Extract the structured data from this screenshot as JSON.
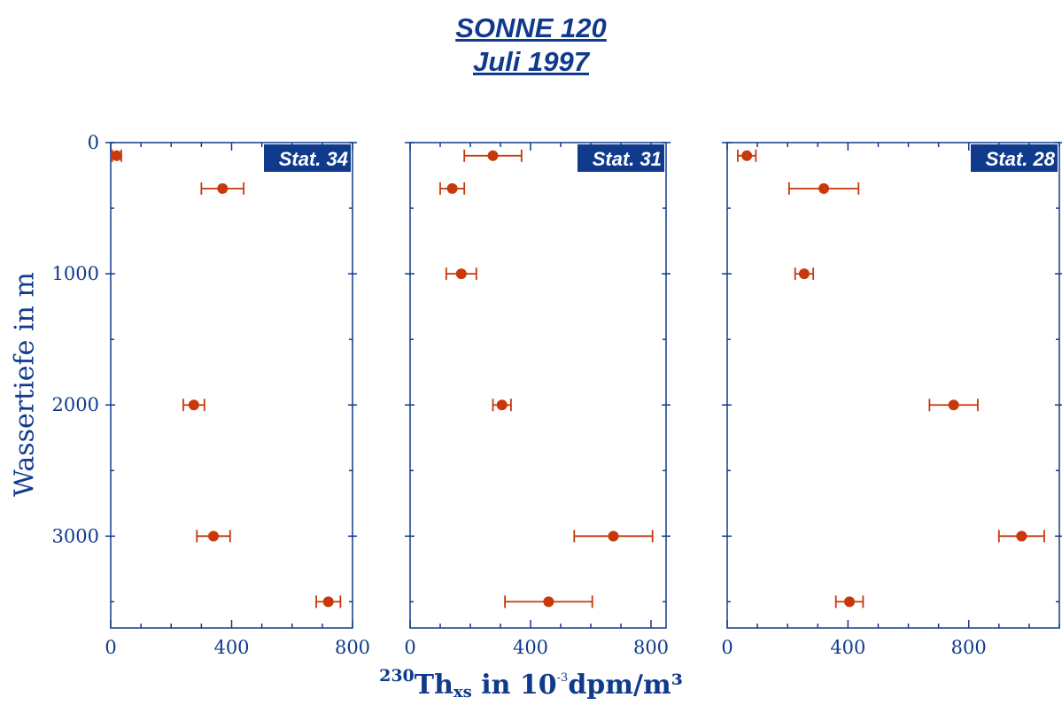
{
  "title": {
    "line1": "SONNE 120",
    "line2": "Juli 1997"
  },
  "xlabel": {
    "isotope": "230",
    "element": "Th",
    "subscript": "xs",
    "units_pre": " in 10",
    "exponent": "-3",
    "units_post": "dpm/m³"
  },
  "ylabel": "Wassertiefe in m",
  "colors": {
    "axis": "#103a8c",
    "data": "#c8380c",
    "badge_bg": "#103a8c",
    "badge_text": "#ffffff"
  },
  "chart_data": [
    {
      "type": "scatter",
      "station": "Stat. 34",
      "xlim": [
        0,
        800
      ],
      "ylim": [
        0,
        3700
      ],
      "y_reversed": true,
      "xticks": [
        "0",
        "400",
        "800"
      ],
      "yticks": [
        "0",
        "1000",
        "2000",
        "3000"
      ],
      "points": [
        {
          "x": 20,
          "y": 100,
          "xerr": 15
        },
        {
          "x": 370,
          "y": 350,
          "xerr": 70
        },
        {
          "x": 275,
          "y": 2000,
          "xerr": 35
        },
        {
          "x": 340,
          "y": 3000,
          "xerr": 55
        },
        {
          "x": 720,
          "y": 3500,
          "xerr": 40
        }
      ]
    },
    {
      "type": "scatter",
      "station": "Stat. 31",
      "xlim": [
        0,
        850
      ],
      "ylim": [
        0,
        3700
      ],
      "y_reversed": true,
      "xticks": [
        "0",
        "400",
        "800"
      ],
      "points": [
        {
          "x": 275,
          "y": 100,
          "xerr": 95
        },
        {
          "x": 140,
          "y": 350,
          "xerr": 40
        },
        {
          "x": 170,
          "y": 1000,
          "xerr": 50
        },
        {
          "x": 305,
          "y": 2000,
          "xerr": 30
        },
        {
          "x": 675,
          "y": 3000,
          "xerr": 130
        },
        {
          "x": 460,
          "y": 3500,
          "xerr": 145
        }
      ]
    },
    {
      "type": "scatter",
      "station": "Stat. 28",
      "xlim": [
        0,
        1100
      ],
      "ylim": [
        0,
        3700
      ],
      "y_reversed": true,
      "xticks": [
        "0",
        "400",
        "800"
      ],
      "points": [
        {
          "x": 65,
          "y": 100,
          "xerr": 30
        },
        {
          "x": 320,
          "y": 350,
          "xerr": 115
        },
        {
          "x": 255,
          "y": 1000,
          "xerr": 30
        },
        {
          "x": 750,
          "y": 2000,
          "xerr": 80
        },
        {
          "x": 975,
          "y": 3000,
          "xerr": 75
        },
        {
          "x": 405,
          "y": 3500,
          "xerr": 45
        }
      ]
    }
  ]
}
